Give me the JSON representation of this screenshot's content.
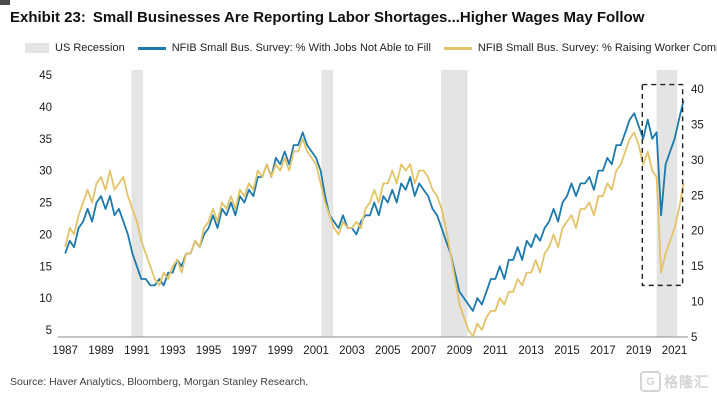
{
  "title": {
    "prefix": "Exhibit 23:",
    "text": "Small Businesses Are Reporting Labor Shortages...Higher Wages May Follow"
  },
  "legend": [
    {
      "type": "bar",
      "label": "US Recession",
      "color": "#e4e4e4"
    },
    {
      "type": "line",
      "label": "NFIB Small Bus. Survey: % With Jobs Not Able to Fill",
      "color": "#1b79ab"
    },
    {
      "type": "line",
      "label": "NFIB Small Bus. Survey: % Raising Worker Comp.",
      "color": "#e3c368"
    }
  ],
  "source": "Source: Haver Analytics, Bloomberg, Morgan Stanley Research.",
  "watermark": {
    "logo_letter": "G",
    "text": "格隆汇"
  },
  "chart_data": {
    "type": "line",
    "x_start": 1987,
    "x_step_years": 0.25,
    "xlim": [
      1986.6,
      2021.75
    ],
    "ylim": [
      5,
      45
    ],
    "grid": false,
    "legend_position": "top",
    "xlabel": "",
    "ylabel": "",
    "x_tick_labels": [
      "1987",
      "1989",
      "1991",
      "1993",
      "1995",
      "1997",
      "1999",
      "2001",
      "2003",
      "2005",
      "2007",
      "2009",
      "2011",
      "2013",
      "2015",
      "2017",
      "2019",
      "2021"
    ],
    "y_ticks_left": [
      "45",
      "40",
      "35",
      "30",
      "25",
      "20",
      "15",
      "10",
      "5"
    ],
    "y_ticks_right": [
      "40",
      "35",
      "30",
      "25",
      "20",
      "15",
      "10",
      "5"
    ],
    "recession_spans": [
      [
        1990.7,
        1991.35
      ],
      [
        2001.3,
        2001.95
      ],
      [
        2007.97,
        2009.45
      ],
      [
        2020.0,
        2021.15
      ]
    ],
    "highlight_box": {
      "x0": 2019.2,
      "x1": 2021.45,
      "y_bottom": 12,
      "y_top": 43.5
    },
    "axis_color": "#a0a0a0",
    "tick_color": "#1a1a1a",
    "series": [
      {
        "name": "NFIB Small Bus. Survey: % With Jobs Not Able to Fill",
        "color": "#1b79ab",
        "values": [
          17,
          19,
          18,
          21,
          22,
          24,
          22,
          25,
          26,
          24,
          26,
          23,
          24,
          22,
          20,
          17,
          15,
          13,
          13,
          12,
          12,
          13,
          12,
          14,
          14,
          16,
          15,
          17,
          17,
          19,
          18,
          20,
          21,
          23,
          21,
          24,
          23,
          25,
          23,
          26,
          25,
          27,
          26,
          29,
          29,
          31,
          29,
          32,
          31,
          33,
          31,
          34,
          34,
          36,
          34,
          33,
          32,
          30,
          26,
          23,
          22,
          21,
          23,
          21,
          21,
          20,
          22,
          23,
          23,
          25,
          23,
          26,
          25,
          27,
          25,
          28,
          27,
          29,
          26,
          28,
          27,
          26,
          24,
          23,
          21,
          19,
          17,
          14,
          11,
          10,
          9,
          8,
          10,
          9,
          11,
          13,
          13,
          15,
          13,
          16,
          16,
          18,
          16,
          19,
          18,
          20,
          19,
          21,
          22,
          24,
          22,
          25,
          26,
          28,
          26,
          28,
          28,
          29,
          27,
          30,
          30,
          32,
          31,
          34,
          34,
          36,
          38,
          39,
          37,
          35,
          38,
          35,
          36,
          23,
          31,
          33,
          35,
          38,
          41
        ]
      },
      {
        "name": "NFIB Small Bus. Survey: % Raising Worker Comp.",
        "color": "#e3c368",
        "values": [
          18,
          21,
          20,
          23,
          25,
          27,
          25,
          28,
          29,
          27,
          30,
          27,
          28,
          29,
          26,
          24,
          22,
          19,
          17,
          15,
          13,
          12,
          14,
          13,
          15,
          16,
          14,
          17,
          17,
          19,
          18,
          21,
          22,
          24,
          22,
          25,
          24,
          26,
          24,
          27,
          26,
          28,
          27,
          30,
          29,
          31,
          29,
          31,
          30,
          32,
          30,
          33,
          33,
          35,
          33,
          32,
          31,
          28,
          25,
          23,
          21,
          20,
          22,
          21,
          21,
          22,
          21,
          24,
          25,
          27,
          25,
          28,
          28,
          30,
          28,
          31,
          30,
          31,
          28,
          30,
          30,
          29,
          27,
          26,
          24,
          21,
          17,
          13,
          9,
          7,
          5,
          4,
          6,
          5,
          7,
          8,
          8,
          10,
          9,
          11,
          11,
          13,
          12,
          14,
          14,
          16,
          14,
          17,
          18,
          20,
          18,
          21,
          22,
          23,
          21,
          24,
          24,
          25,
          23,
          26,
          26,
          28,
          27,
          30,
          31,
          33,
          35,
          36,
          34,
          31,
          33,
          30,
          29,
          14,
          17,
          19,
          21,
          24,
          28
        ]
      }
    ]
  }
}
